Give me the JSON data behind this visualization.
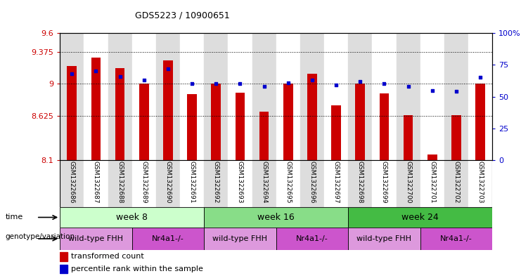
{
  "title": "GDS5223 / 10900651",
  "samples": [
    "GSM1322686",
    "GSM1322687",
    "GSM1322688",
    "GSM1322689",
    "GSM1322690",
    "GSM1322691",
    "GSM1322692",
    "GSM1322693",
    "GSM1322694",
    "GSM1322695",
    "GSM1322696",
    "GSM1322697",
    "GSM1322698",
    "GSM1322699",
    "GSM1322700",
    "GSM1322701",
    "GSM1322702",
    "GSM1322703"
  ],
  "bar_values": [
    9.21,
    9.31,
    9.19,
    9.0,
    9.28,
    8.88,
    9.0,
    8.9,
    8.67,
    9.0,
    9.12,
    8.75,
    9.0,
    8.89,
    8.63,
    8.17,
    8.63,
    9.0
  ],
  "dot_values": [
    68,
    70,
    66,
    63,
    72,
    60,
    60,
    60,
    58,
    61,
    63,
    59,
    62,
    60,
    58,
    55,
    54,
    65
  ],
  "bar_color": "#cc0000",
  "dot_color": "#0000cc",
  "ylim_left": [
    8.1,
    9.6
  ],
  "ylim_right": [
    0,
    100
  ],
  "yticks_left": [
    8.1,
    8.625,
    9.0,
    9.375,
    9.6
  ],
  "ytick_labels_left": [
    "8.1",
    "8.625",
    "9",
    "9.375",
    "9.6"
  ],
  "yticks_right": [
    0,
    25,
    50,
    75,
    100
  ],
  "ytick_labels_right": [
    "0",
    "25",
    "50",
    "75",
    "100%"
  ],
  "hlines": [
    9.375,
    9.0,
    8.625
  ],
  "time_groups": [
    {
      "label": "week 8",
      "start": 0,
      "end": 6,
      "color": "#ccffcc"
    },
    {
      "label": "week 16",
      "start": 6,
      "end": 12,
      "color": "#88dd88"
    },
    {
      "label": "week 24",
      "start": 12,
      "end": 18,
      "color": "#44bb44"
    }
  ],
  "genotype_groups": [
    {
      "label": "wild-type FHH",
      "start": 0,
      "end": 3,
      "color": "#dd88dd"
    },
    {
      "label": "Nr4a1-/-",
      "start": 3,
      "end": 6,
      "color": "#cc55cc"
    },
    {
      "label": "wild-type FHH",
      "start": 6,
      "end": 9,
      "color": "#dd88dd"
    },
    {
      "label": "Nr4a1-/-",
      "start": 9,
      "end": 12,
      "color": "#cc55cc"
    },
    {
      "label": "wild-type FHH",
      "start": 12,
      "end": 15,
      "color": "#dd88dd"
    },
    {
      "label": "Nr4a1-/-",
      "start": 15,
      "end": 18,
      "color": "#cc55cc"
    }
  ],
  "legend_bar_label": "transformed count",
  "legend_dot_label": "percentile rank within the sample",
  "sample_bg_colors_even": "#dddddd",
  "sample_bg_colors_odd": "#ffffff",
  "time_label": "time",
  "genotype_label": "genotype/variation"
}
